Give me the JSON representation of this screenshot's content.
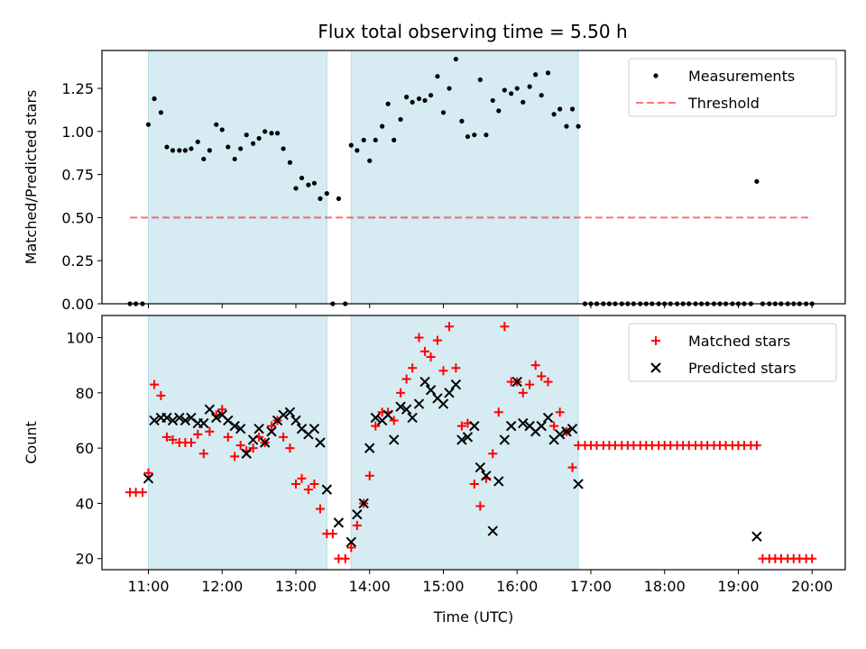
{
  "title": "Flux total observing time = 5.50 h",
  "colors": {
    "shade": "#add8e6",
    "threshold": "#ff0000",
    "matched": "#ff0000",
    "predicted": "#000000",
    "measurement": "#000000"
  },
  "chart_data": [
    {
      "type": "scatter",
      "panel": "top",
      "ylabel": "Matched/Predicted stars",
      "xlabel": "",
      "ylim": [
        0,
        1.47
      ],
      "xlim": [
        10.37,
        20.45
      ],
      "yticks": [
        0.0,
        0.25,
        0.5,
        0.75,
        1.0,
        1.25
      ],
      "ytick_labels": [
        "0.00",
        "0.25",
        "0.50",
        "0.75",
        "1.00",
        "1.25"
      ],
      "shaded_intervals": [
        [
          11.0,
          13.42
        ],
        [
          13.75,
          16.83
        ]
      ],
      "threshold": {
        "y": 0.5,
        "x_range": [
          10.75,
          20.0
        ]
      },
      "legend": {
        "placement": "top-right",
        "entries": [
          "Measurements",
          "Threshold"
        ]
      },
      "series": [
        {
          "name": "Measurements",
          "x": [
            10.75,
            10.83,
            10.92,
            11.0,
            11.08,
            11.17,
            11.25,
            11.33,
            11.42,
            11.5,
            11.58,
            11.67,
            11.75,
            11.83,
            11.92,
            12.0,
            12.08,
            12.17,
            12.25,
            12.33,
            12.42,
            12.5,
            12.58,
            12.67,
            12.75,
            12.83,
            12.92,
            13.0,
            13.08,
            13.17,
            13.25,
            13.33,
            13.42,
            13.5,
            13.58,
            13.67,
            13.75,
            13.83,
            13.92,
            14.0,
            14.08,
            14.17,
            14.25,
            14.33,
            14.42,
            14.5,
            14.58,
            14.67,
            14.75,
            14.83,
            14.92,
            15.0,
            15.08,
            15.17,
            15.25,
            15.33,
            15.42,
            15.5,
            15.58,
            15.67,
            15.75,
            15.83,
            15.92,
            16.0,
            16.08,
            16.17,
            16.25,
            16.33,
            16.42,
            16.5,
            16.58,
            16.67,
            16.75,
            16.83,
            16.92,
            17.0,
            17.08,
            17.17,
            17.25,
            17.33,
            17.42,
            17.5,
            17.58,
            17.67,
            17.75,
            17.83,
            17.92,
            18.0,
            18.08,
            18.17,
            18.25,
            18.33,
            18.42,
            18.5,
            18.58,
            18.67,
            18.75,
            18.83,
            18.92,
            19.0,
            19.08,
            19.17,
            19.25,
            19.33,
            19.42,
            19.5,
            19.58,
            19.67,
            19.75,
            19.83,
            19.92,
            20.0
          ],
          "y": [
            0.0,
            0.0,
            0.0,
            1.04,
            1.19,
            1.11,
            0.91,
            0.89,
            0.89,
            0.89,
            0.9,
            0.94,
            0.84,
            0.89,
            1.04,
            1.01,
            0.91,
            0.84,
            0.9,
            0.98,
            0.93,
            0.96,
            1.0,
            0.99,
            0.99,
            0.9,
            0.82,
            0.67,
            0.73,
            0.69,
            0.7,
            0.61,
            0.64,
            0.0,
            0.61,
            0.0,
            0.92,
            0.89,
            0.95,
            0.83,
            0.95,
            1.03,
            1.16,
            0.95,
            1.07,
            1.2,
            1.17,
            1.19,
            1.18,
            1.21,
            1.32,
            1.11,
            1.25,
            1.42,
            1.06,
            0.97,
            0.98,
            1.3,
            0.98,
            1.18,
            1.12,
            1.24,
            1.22,
            1.25,
            1.17,
            1.26,
            1.33,
            1.21,
            1.34,
            1.1,
            1.13,
            1.03,
            1.13,
            1.03,
            0.0,
            0.0,
            0.0,
            0.0,
            0.0,
            0.0,
            0.0,
            0.0,
            0.0,
            0.0,
            0.0,
            0.0,
            0.0,
            0.0,
            0.0,
            0.0,
            0.0,
            0.0,
            0.0,
            0.0,
            0.0,
            0.0,
            0.0,
            0.0,
            0.0,
            0.0,
            0.0,
            0.0,
            0.71,
            0.0,
            0.0,
            0.0,
            0.0,
            0.0,
            0.0,
            0.0,
            0.0,
            0.0
          ]
        }
      ]
    },
    {
      "type": "scatter",
      "panel": "bottom",
      "xlabel": "Time (UTC)",
      "ylabel": "Count",
      "ylim": [
        16,
        108
      ],
      "xlim": [
        10.37,
        20.45
      ],
      "xticks": [
        11,
        12,
        13,
        14,
        15,
        16,
        17,
        18,
        19,
        20
      ],
      "xtick_labels": [
        "11:00",
        "12:00",
        "13:00",
        "14:00",
        "15:00",
        "16:00",
        "17:00",
        "18:00",
        "19:00",
        "20:00"
      ],
      "yticks": [
        20,
        40,
        60,
        80,
        100
      ],
      "ytick_labels": [
        "20",
        "40",
        "60",
        "80",
        "100"
      ],
      "shaded_intervals": [
        [
          11.0,
          13.42
        ],
        [
          13.75,
          16.83
        ]
      ],
      "legend": {
        "placement": "top-right",
        "entries": [
          "Matched stars",
          "Predicted stars"
        ]
      },
      "series": [
        {
          "name": "Matched stars",
          "x": [
            10.75,
            10.83,
            10.92,
            11.0,
            11.08,
            11.17,
            11.25,
            11.33,
            11.42,
            11.5,
            11.58,
            11.67,
            11.75,
            11.83,
            11.92,
            12.0,
            12.08,
            12.17,
            12.25,
            12.33,
            12.42,
            12.5,
            12.58,
            12.67,
            12.75,
            12.83,
            12.92,
            13.0,
            13.08,
            13.17,
            13.25,
            13.33,
            13.42,
            13.5,
            13.58,
            13.67,
            13.75,
            13.83,
            13.92,
            14.0,
            14.08,
            14.17,
            14.25,
            14.33,
            14.42,
            14.5,
            14.58,
            14.67,
            14.75,
            14.83,
            14.92,
            15.0,
            15.08,
            15.17,
            15.25,
            15.33,
            15.42,
            15.5,
            15.58,
            15.67,
            15.75,
            15.83,
            15.92,
            16.0,
            16.08,
            16.17,
            16.25,
            16.33,
            16.42,
            16.5,
            16.58,
            16.67,
            16.75,
            16.83,
            16.92,
            17.0,
            17.08,
            17.17,
            17.25,
            17.33,
            17.42,
            17.5,
            17.58,
            17.67,
            17.75,
            17.83,
            17.92,
            18.0,
            18.08,
            18.17,
            18.25,
            18.33,
            18.42,
            18.5,
            18.58,
            18.67,
            18.75,
            18.83,
            18.92,
            19.0,
            19.08,
            19.17,
            19.25,
            19.33,
            19.42,
            19.5,
            19.58,
            19.67,
            19.75,
            19.83,
            19.92,
            20.0
          ],
          "y": [
            44,
            44,
            44,
            51,
            83,
            79,
            64,
            63,
            62,
            62,
            62,
            65,
            58,
            66,
            72,
            74,
            64,
            57,
            61,
            59,
            60,
            64,
            62,
            68,
            70,
            64,
            60,
            47,
            49,
            45,
            47,
            38,
            29,
            29,
            20,
            20,
            24,
            32,
            40,
            50,
            68,
            73,
            73,
            70,
            80,
            85,
            89,
            100,
            95,
            93,
            99,
            88,
            104,
            89,
            68,
            69,
            47,
            39,
            49,
            58,
            73,
            104,
            84,
            84,
            80,
            83,
            90,
            86,
            84,
            68,
            73,
            66,
            53,
            61,
            61,
            61,
            61,
            61,
            61,
            61,
            61,
            61,
            61,
            61,
            61,
            61,
            61,
            61,
            61,
            61,
            61,
            61,
            61,
            61,
            61,
            61,
            61,
            61,
            61,
            61,
            61,
            61,
            61,
            20,
            20,
            20,
            20,
            20,
            20,
            20,
            20,
            20
          ]
        },
        {
          "name": "Predicted stars",
          "x": [
            11.0,
            11.08,
            11.17,
            11.25,
            11.33,
            11.42,
            11.5,
            11.58,
            11.67,
            11.75,
            11.83,
            11.92,
            12.0,
            12.08,
            12.17,
            12.25,
            12.33,
            12.42,
            12.5,
            12.58,
            12.67,
            12.75,
            12.83,
            12.92,
            13.0,
            13.08,
            13.17,
            13.25,
            13.33,
            13.42,
            13.58,
            13.75,
            13.83,
            13.92,
            14.0,
            14.08,
            14.17,
            14.25,
            14.33,
            14.42,
            14.5,
            14.58,
            14.67,
            14.75,
            14.83,
            14.92,
            15.0,
            15.08,
            15.17,
            15.25,
            15.33,
            15.42,
            15.5,
            15.58,
            15.67,
            15.75,
            15.83,
            15.92,
            16.0,
            16.08,
            16.17,
            16.25,
            16.33,
            16.42,
            16.5,
            16.58,
            16.67,
            16.75,
            16.83,
            19.25
          ],
          "y": [
            49,
            70,
            71,
            71,
            70,
            71,
            70,
            71,
            69,
            69,
            74,
            71,
            72,
            70,
            68,
            67,
            58,
            63,
            67,
            62,
            66,
            70,
            72,
            73,
            70,
            67,
            65,
            67,
            62,
            45,
            33,
            26,
            36,
            40,
            60,
            71,
            70,
            72,
            63,
            75,
            74,
            71,
            76,
            84,
            81,
            78,
            76,
            80,
            83,
            63,
            64,
            68,
            53,
            50,
            30,
            48,
            63,
            68,
            84,
            69,
            68,
            66,
            68,
            71,
            63,
            65,
            66,
            67,
            47,
            28
          ]
        }
      ]
    }
  ]
}
